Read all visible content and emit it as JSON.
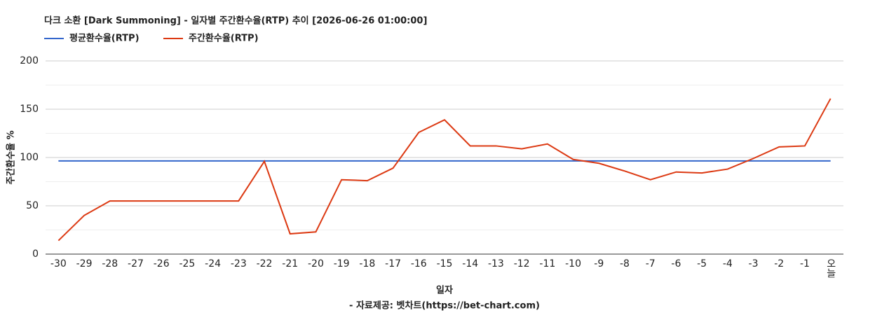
{
  "chart_data": {
    "type": "line",
    "title": "다크 소환 [Dark Summoning] - 일자별 주간환수율(RTP) 추이 [2026-06-26 01:00:00]",
    "x_label": "일자",
    "y_label": "주간환수율 %",
    "source": "- 자료제공: 벳차트(https://bet-chart.com)",
    "categories": [
      "-30",
      "-29",
      "-28",
      "-27",
      "-26",
      "-25",
      "-24",
      "-23",
      "-22",
      "-21",
      "-20",
      "-19",
      "-18",
      "-17",
      "-16",
      "-15",
      "-14",
      "-13",
      "-12",
      "-11",
      "-10",
      "-9",
      "-8",
      "-7",
      "-6",
      "-5",
      "-4",
      "-3",
      "-2",
      "-1",
      "오늘"
    ],
    "series": [
      {
        "name": "평균환수율(RTP)",
        "color": "#3366cc",
        "values": [
          96.5,
          96.5,
          96.5,
          96.5,
          96.5,
          96.5,
          96.5,
          96.5,
          96.5,
          96.5,
          96.5,
          96.5,
          96.5,
          96.5,
          96.5,
          96.5,
          96.5,
          96.5,
          96.5,
          96.5,
          96.5,
          96.5,
          96.5,
          96.5,
          96.5,
          96.5,
          96.5,
          96.5,
          96.5,
          96.5,
          96.5
        ]
      },
      {
        "name": "주간환수율(RTP)",
        "color": "#dc3912",
        "values": [
          14,
          40,
          55,
          55,
          55,
          55,
          55,
          55,
          96,
          21,
          23,
          77,
          76,
          89,
          126,
          139,
          112,
          112,
          109,
          114,
          98,
          94,
          86,
          77,
          85,
          84,
          88,
          99,
          111,
          112,
          161
        ]
      }
    ],
    "ylim": [
      0,
      200
    ],
    "yticks": [
      0,
      50,
      100,
      150,
      200
    ],
    "grid": true,
    "minor_grid": true
  }
}
